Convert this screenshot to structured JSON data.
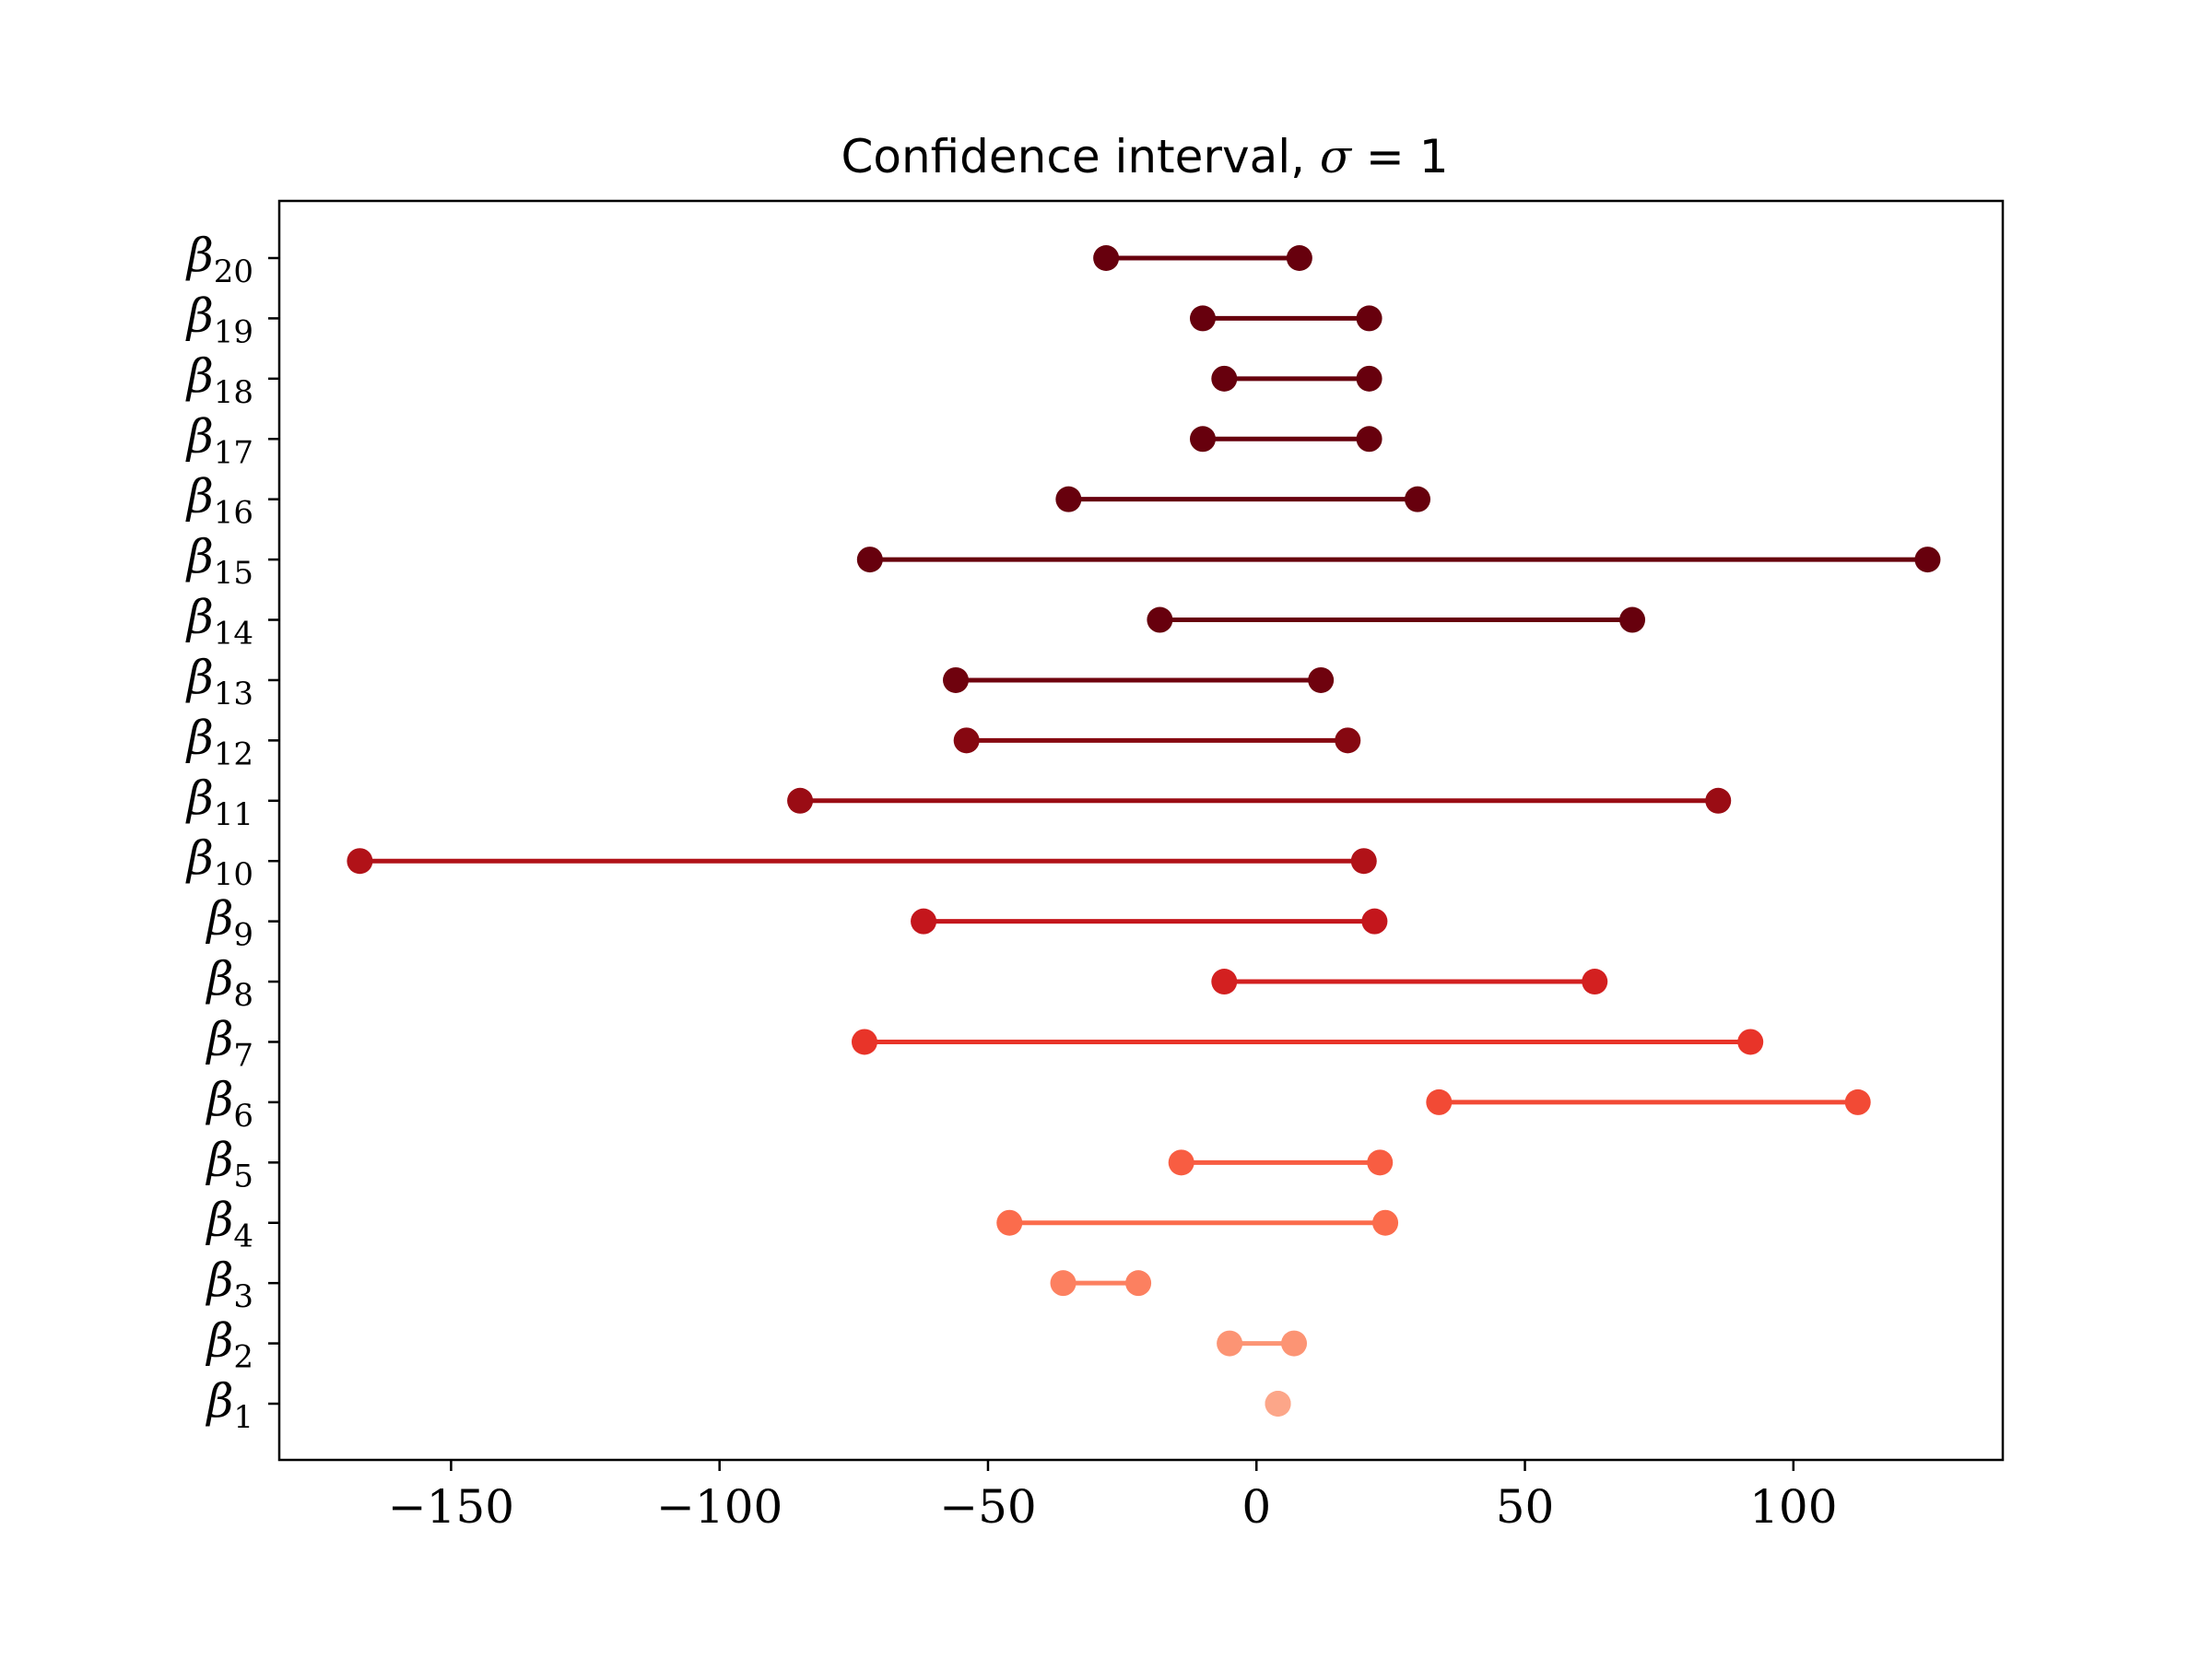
{
  "chart_data": {
    "type": "dot-range",
    "title_prefix": "Confidence interval, ",
    "title_symbol": "σ",
    "title_suffix": " = 1",
    "xlim": [
      -182,
      139
    ],
    "xticks": [
      -150,
      -100,
      -50,
      0,
      50,
      100
    ],
    "xtick_labels": [
      "−150",
      "−100",
      "−50",
      "0",
      "50",
      "100"
    ],
    "grid": false,
    "y_symbol": "β",
    "categories": [
      "1",
      "2",
      "3",
      "4",
      "5",
      "6",
      "7",
      "8",
      "9",
      "10",
      "11",
      "12",
      "13",
      "14",
      "15",
      "16",
      "17",
      "18",
      "19",
      "20"
    ],
    "intervals": [
      {
        "low": 4,
        "high": 4
      },
      {
        "low": -5,
        "high": 7
      },
      {
        "low": -36,
        "high": -22
      },
      {
        "low": -46,
        "high": 24
      },
      {
        "low": -14,
        "high": 23
      },
      {
        "low": 34,
        "high": 112
      },
      {
        "low": -73,
        "high": 92
      },
      {
        "low": -6,
        "high": 63
      },
      {
        "low": -62,
        "high": 22
      },
      {
        "low": -167,
        "high": 20
      },
      {
        "low": -85,
        "high": 86
      },
      {
        "low": -54,
        "high": 17
      },
      {
        "low": -56,
        "high": 12
      },
      {
        "low": -18,
        "high": 70
      },
      {
        "low": -72,
        "high": 125
      },
      {
        "low": -35,
        "high": 30
      },
      {
        "low": -10,
        "high": 21
      },
      {
        "low": -6,
        "high": 21
      },
      {
        "low": -10,
        "high": 21
      },
      {
        "low": -28,
        "high": 8
      }
    ],
    "colors": [
      "#fca689",
      "#fc9474",
      "#fc8060",
      "#fb6c4c",
      "#f85d42",
      "#f24a35",
      "#e83429",
      "#d32020",
      "#c4161c",
      "#b11218",
      "#9a0c14",
      "#860811",
      "#6f020e",
      "#67000d",
      "#67000d",
      "#67000d",
      "#67000d",
      "#67000d",
      "#67000d",
      "#67000d"
    ]
  }
}
